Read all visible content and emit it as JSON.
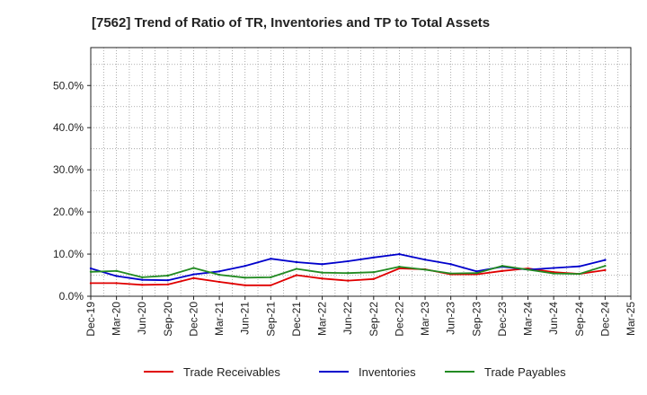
{
  "chart_data": {
    "type": "line",
    "title": "[7562]  Trend of Ratio of TR, Inventories and TP to Total Assets",
    "xlabel": "",
    "ylabel": "",
    "ylim": [
      0,
      0.59
    ],
    "y_ticks": [
      {
        "value": 0.0,
        "label": "0.0%"
      },
      {
        "value": 0.1,
        "label": "10.0%"
      },
      {
        "value": 0.2,
        "label": "20.0%"
      },
      {
        "value": 0.3,
        "label": "30.0%"
      },
      {
        "value": 0.4,
        "label": "40.0%"
      },
      {
        "value": 0.5,
        "label": "50.0%"
      }
    ],
    "x_ticks": [
      "Dec-19",
      "Mar-20",
      "Jun-20",
      "Sep-20",
      "Dec-20",
      "Mar-21",
      "Jun-21",
      "Sep-21",
      "Dec-21",
      "Mar-22",
      "Jun-22",
      "Sep-22",
      "Dec-22",
      "Mar-23",
      "Jun-23",
      "Sep-23",
      "Dec-23",
      "Mar-24",
      "Jun-24",
      "Sep-24",
      "Dec-24",
      "Mar-25"
    ],
    "x": [
      "Dec-19",
      "Mar-20",
      "Jun-20",
      "Sep-20",
      "Dec-20",
      "Mar-21",
      "Jun-21",
      "Sep-21",
      "Dec-21",
      "Mar-22",
      "Jun-22",
      "Sep-22",
      "Dec-22",
      "Mar-23",
      "Jun-23",
      "Sep-23",
      "Dec-23",
      "Mar-24",
      "Jun-24",
      "Sep-24",
      "Dec-24"
    ],
    "grid": true,
    "legend_position": "bottom",
    "series": [
      {
        "name": "Trade Receivables",
        "color": "#e00000",
        "values": [
          0.031,
          0.031,
          0.027,
          0.028,
          0.043,
          0.034,
          0.026,
          0.026,
          0.05,
          0.042,
          0.037,
          0.041,
          0.066,
          0.064,
          0.052,
          0.052,
          0.06,
          0.066,
          0.057,
          0.053,
          0.062
        ]
      },
      {
        "name": "Inventories",
        "color": "#0000cc",
        "values": [
          0.066,
          0.048,
          0.039,
          0.038,
          0.052,
          0.059,
          0.072,
          0.089,
          0.081,
          0.076,
          0.083,
          0.092,
          0.1,
          0.087,
          0.076,
          0.059,
          0.07,
          0.063,
          0.067,
          0.071,
          0.086
        ]
      },
      {
        "name": "Trade Payables",
        "color": "#228b22",
        "values": [
          0.058,
          0.06,
          0.045,
          0.049,
          0.067,
          0.051,
          0.044,
          0.045,
          0.065,
          0.056,
          0.055,
          0.057,
          0.07,
          0.063,
          0.054,
          0.055,
          0.072,
          0.063,
          0.054,
          0.053,
          0.072
        ]
      }
    ]
  }
}
